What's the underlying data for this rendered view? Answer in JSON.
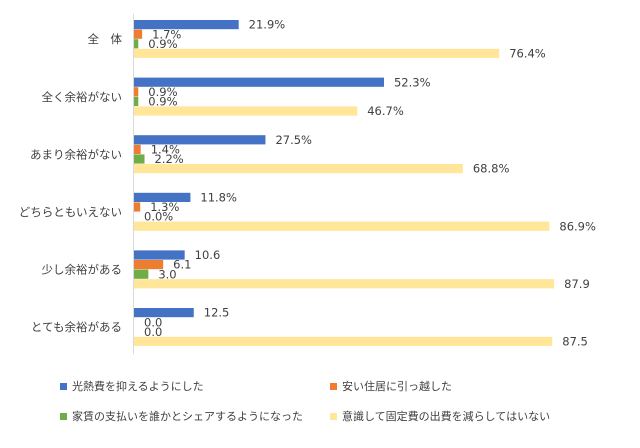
{
  "chart_data": {
    "type": "bar",
    "orientation": "horizontal",
    "categories": [
      "全　体",
      "全く余裕がない",
      "あまり余裕がない",
      "どちらともいえない",
      "少し余裕がある",
      "とても余裕がある"
    ],
    "series": [
      {
        "name": "光熱費を抑えるようにした",
        "color": "#4472C4",
        "values": [
          21.9,
          52.3,
          27.5,
          11.8,
          10.6,
          12.5
        ],
        "labels": [
          "21.9%",
          "52.3%",
          "27.5%",
          "11.8%",
          "10.6",
          "12.5"
        ]
      },
      {
        "name": "安い住居に引っ越した",
        "color": "#ED7D31",
        "values": [
          1.7,
          0.9,
          1.4,
          1.3,
          6.1,
          0.0
        ],
        "labels": [
          "1.7%",
          "0.9%",
          "1.4%",
          "1.3%",
          "6.1",
          "0.0"
        ]
      },
      {
        "name": "家賃の支払いを誰かとシェアするようになった",
        "color": "#70AD47",
        "values": [
          0.9,
          0.9,
          2.2,
          0.0,
          3.0,
          0.0
        ],
        "labels": [
          "0.9%",
          "0.9%",
          "2.2%",
          "0.0%",
          "3.0",
          "0.0"
        ]
      },
      {
        "name": "意識して固定費の出費を減らしてはいない",
        "color": "#FFE699",
        "values": [
          76.4,
          46.7,
          68.8,
          86.9,
          87.9,
          87.5
        ],
        "labels": [
          "76.4%",
          "46.7%",
          "68.8%",
          "86.9%",
          "87.9",
          "87.5"
        ]
      }
    ],
    "xlim": [
      0,
      100
    ],
    "grid": false,
    "legend_position": "bottom"
  }
}
